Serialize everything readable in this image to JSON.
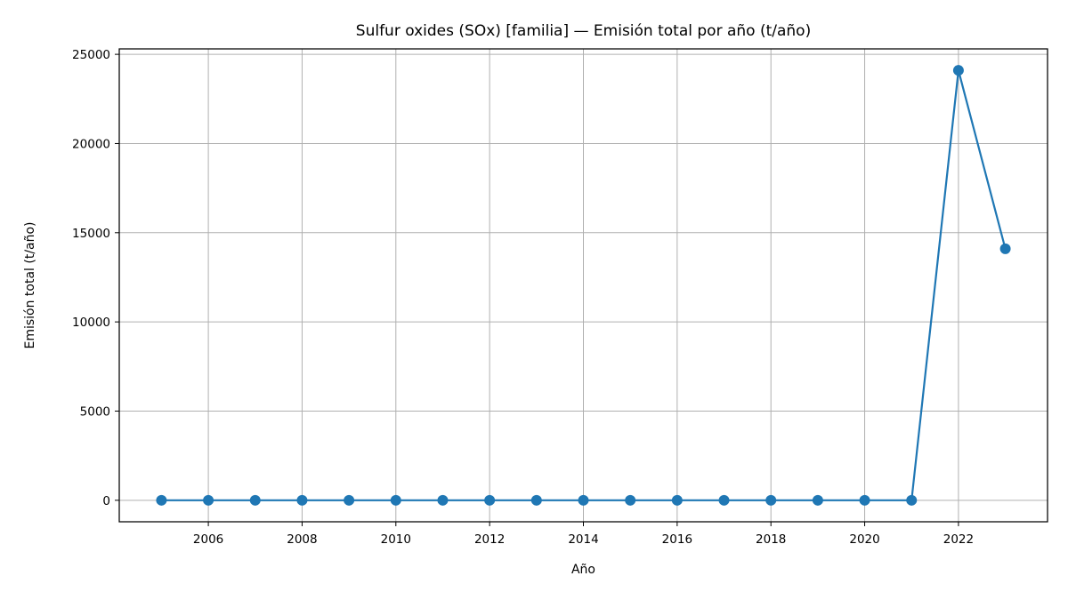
{
  "chart_data": {
    "type": "line",
    "title": "Sulfur oxides (SOx) [familia] — Emisión total por año (t/año)",
    "xlabel": "Año",
    "ylabel": "Emisión total (t/año)",
    "x": [
      2005,
      2006,
      2007,
      2008,
      2009,
      2010,
      2011,
      2012,
      2013,
      2014,
      2015,
      2016,
      2017,
      2018,
      2019,
      2020,
      2021,
      2022,
      2023
    ],
    "series": [
      {
        "values": [
          0,
          0,
          0,
          0,
          0,
          0,
          0,
          0,
          0,
          0,
          0,
          0,
          0,
          0,
          0,
          0,
          0,
          24100,
          14100
        ],
        "color": "#1f77b4"
      }
    ],
    "xlim": [
      2004.1,
      2023.9
    ],
    "ylim": [
      -1205,
      25305
    ],
    "xticks": [
      2006,
      2008,
      2010,
      2012,
      2014,
      2016,
      2018,
      2020,
      2022
    ],
    "yticks": [
      0,
      5000,
      10000,
      15000,
      20000,
      25000
    ],
    "grid": true,
    "legend": false
  }
}
